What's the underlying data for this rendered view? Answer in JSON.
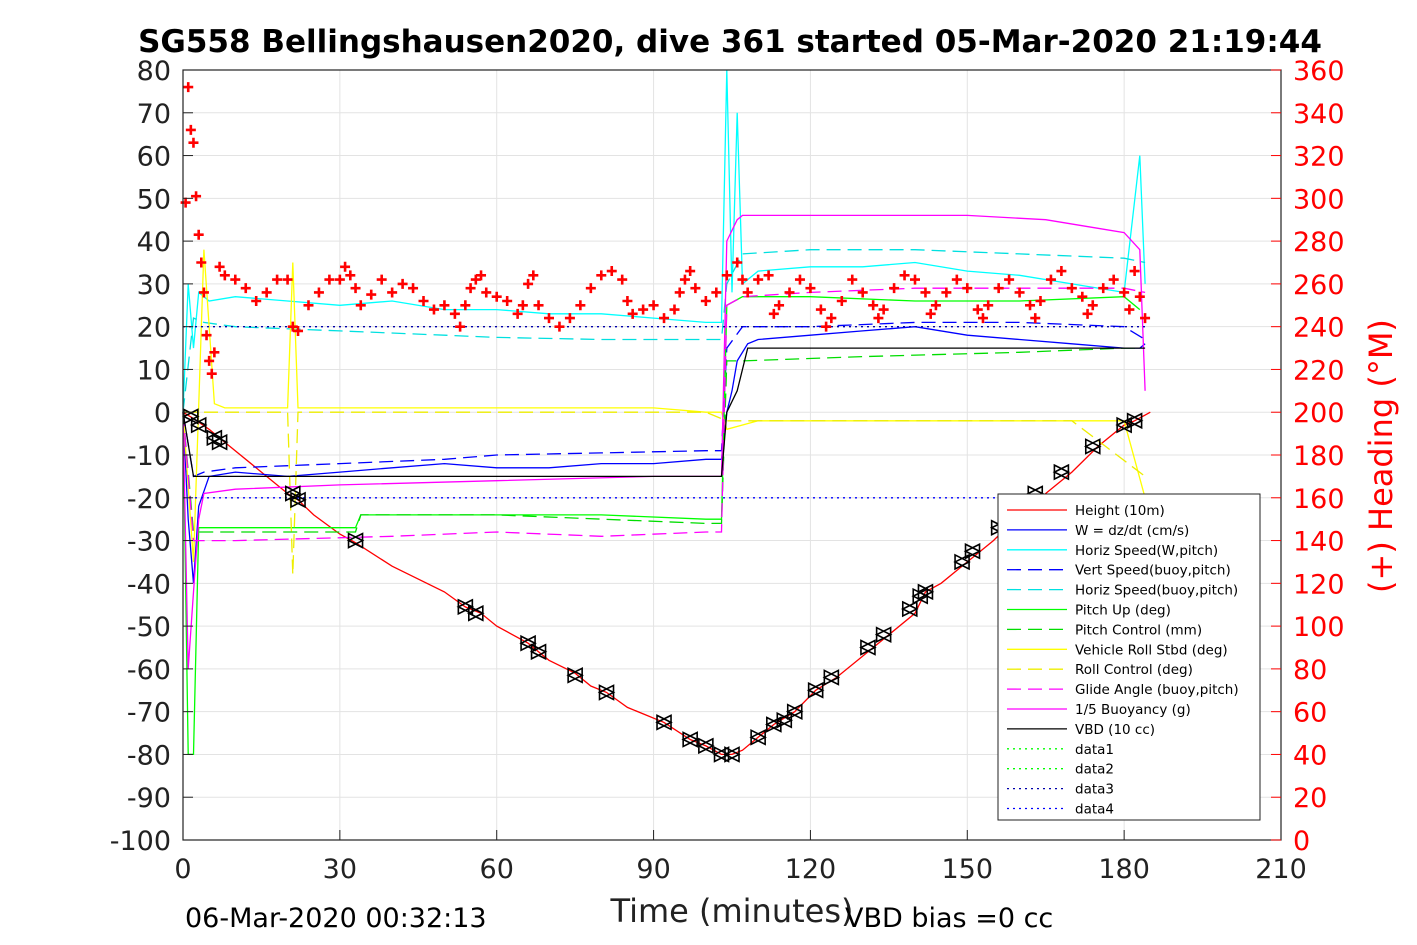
{
  "title": "SG558 Bellingshausen2020, dive 361 started 05-Mar-2020 21:19:44",
  "footer_left": "06-Mar-2020 00:32:13",
  "footer_right": "VBD bias =0 cc",
  "chart_data": {
    "type": "line",
    "xlabel": "Time (minutes)",
    "ylabel": "",
    "y2label": "(+) Heading (°M)",
    "xlim": [
      0,
      210
    ],
    "ylim": [
      -100,
      80
    ],
    "y2lim": [
      0,
      360
    ],
    "xticks": [
      0,
      30,
      60,
      90,
      120,
      150,
      180,
      210
    ],
    "yticks": [
      80,
      70,
      60,
      50,
      40,
      30,
      20,
      10,
      0,
      -10,
      -20,
      -30,
      -40,
      -50,
      -60,
      -70,
      -80,
      -90,
      -100
    ],
    "y2ticks": [
      360,
      340,
      320,
      300,
      280,
      260,
      240,
      220,
      200,
      180,
      160,
      140,
      120,
      100,
      80,
      60,
      40,
      20,
      0
    ],
    "grid": true,
    "legend_position": "lower-right",
    "colors": {
      "height": "#ff0000",
      "w": "#0000ff",
      "horiz_speed_w": "#00ffff",
      "vert_speed_buoy": "#0000ff",
      "horiz_speed_buoy": "#00e0e0",
      "pitch_up": "#00ff00",
      "pitch_control": "#00dd00",
      "roll": "#ffff00",
      "roll_control": "#eeee00",
      "glide_angle": "#ff00ff",
      "buoyancy": "#ff00ff",
      "vbd": "#000000",
      "heading": "#ff0000",
      "right_axis": "#ff0000"
    },
    "series": [
      {
        "name": "Height (10m)",
        "style": "solid",
        "color": "#ff0000",
        "x": [
          0,
          2,
          5,
          8,
          15,
          20,
          22,
          25,
          30,
          33,
          40,
          50,
          54,
          57,
          60,
          66,
          68,
          70,
          75,
          78,
          81,
          85,
          92,
          97,
          100,
          103,
          105,
          107,
          110,
          113,
          117,
          121,
          125,
          130,
          135,
          140,
          142,
          145,
          150,
          155,
          160,
          165,
          170,
          175,
          180,
          182,
          185
        ],
        "y": [
          0,
          -1.5,
          -4,
          -7,
          -14,
          -19,
          -20.5,
          -24,
          -28.5,
          -30.5,
          -36,
          -42,
          -45.5,
          -47,
          -50,
          -54,
          -56,
          -58,
          -61,
          -64,
          -65.5,
          -69,
          -72.5,
          -76.5,
          -78,
          -80,
          -80,
          -79,
          -76,
          -73,
          -70,
          -65,
          -62,
          -57,
          -52,
          -47,
          -42,
          -40,
          -35,
          -30,
          -24,
          -19,
          -14,
          -8,
          -3,
          -2,
          0
        ]
      },
      {
        "name": "W = dz/dt (cm/s)",
        "style": "solid",
        "color": "#0000ff",
        "x": [
          0,
          1,
          2,
          3,
          5,
          10,
          20,
          30,
          40,
          50,
          60,
          70,
          80,
          90,
          100,
          103,
          104,
          105,
          106,
          108,
          110,
          120,
          130,
          140,
          150,
          160,
          170,
          180,
          183,
          184
        ],
        "y": [
          0,
          -25,
          -40,
          -22,
          -15,
          -14,
          -15,
          -14,
          -13,
          -12,
          -13,
          -13,
          -12,
          -12,
          -11,
          -11,
          0,
          5,
          12,
          16,
          17,
          18,
          19,
          20,
          18,
          17,
          16,
          15,
          15,
          16
        ]
      },
      {
        "name": "Horiz Speed(W,pitch)",
        "style": "solid",
        "color": "#00ffff",
        "x": [
          0,
          1,
          2,
          3,
          5,
          10,
          20,
          30,
          40,
          50,
          60,
          70,
          80,
          90,
          100,
          103,
          104,
          105,
          106,
          107,
          110,
          120,
          130,
          140,
          150,
          160,
          170,
          180,
          183,
          184
        ],
        "y": [
          0,
          30,
          15,
          28,
          26,
          27,
          26,
          25,
          26,
          24,
          24,
          23,
          23,
          22,
          21,
          21,
          80,
          28,
          70,
          30,
          33,
          34,
          34,
          35,
          33,
          32,
          30,
          28,
          60,
          30
        ]
      },
      {
        "name": "Vert Speed(buoy,pitch)",
        "style": "dash",
        "color": "#0000ff",
        "x": [
          0,
          2,
          4,
          10,
          30,
          50,
          60,
          80,
          100,
          103,
          104,
          107,
          120,
          140,
          160,
          180,
          184
        ],
        "y": [
          0,
          -15,
          -14,
          -13,
          -12,
          -11,
          -10,
          -9.5,
          -9,
          -9,
          15,
          20,
          20,
          21,
          21,
          20,
          17
        ]
      },
      {
        "name": "Horiz Speed(buoy,pitch)",
        "style": "dash",
        "color": "#00e0e0",
        "x": [
          0,
          2,
          4,
          10,
          30,
          50,
          60,
          80,
          100,
          103,
          104,
          107,
          120,
          140,
          160,
          180,
          184
        ],
        "y": [
          0,
          22,
          21,
          20,
          19,
          18,
          17.5,
          17,
          17,
          17,
          30,
          37,
          38,
          38,
          37,
          36,
          35
        ]
      },
      {
        "name": "Pitch Up (deg)",
        "style": "solid",
        "color": "#00ff00",
        "x": [
          0,
          1,
          2,
          3,
          5,
          20,
          33,
          34,
          60,
          80,
          100,
          103,
          104,
          107,
          120,
          140,
          160,
          180,
          183
        ],
        "y": [
          0,
          -80,
          -80,
          -27,
          -27,
          -27,
          -27,
          -24,
          -24,
          -24,
          -25,
          -25,
          25,
          27,
          27,
          26,
          26,
          27,
          24
        ]
      },
      {
        "name": "Pitch Control (mm)",
        "style": "dash",
        "color": "#00dd00",
        "x": [
          0,
          2,
          4,
          20,
          33,
          34,
          60,
          100,
          103,
          104,
          107,
          130,
          160,
          180,
          183
        ],
        "y": [
          0,
          -28,
          -28,
          -28,
          -28,
          -24,
          -24,
          -26,
          -26,
          12,
          12,
          13,
          14,
          15,
          15
        ]
      },
      {
        "name": "Vehicle Roll Stbd (deg)",
        "style": "solid",
        "color": "#ffff00",
        "x": [
          0,
          2,
          4,
          6,
          8,
          20,
          21,
          22,
          30,
          40,
          50,
          55,
          60,
          70,
          80,
          90,
          100,
          103,
          104,
          110,
          120,
          130,
          140,
          150,
          160,
          170,
          180,
          184
        ],
        "y": [
          0,
          -35,
          38,
          2,
          1,
          1,
          35,
          1,
          1,
          1,
          1,
          1,
          1,
          1,
          1,
          1,
          0,
          0,
          -4,
          -2,
          -2,
          -2,
          -2,
          -2,
          -2,
          -2,
          -2,
          -20
        ]
      },
      {
        "name": "Roll Control (deg)",
        "style": "dash",
        "color": "#eeee00",
        "x": [
          0,
          5,
          20,
          21,
          22,
          40,
          60,
          80,
          100,
          104,
          110,
          140,
          170,
          184
        ],
        "y": [
          0,
          0,
          0,
          -38,
          0,
          0,
          0,
          0,
          0,
          -2,
          -2,
          -2,
          -2,
          -15
        ]
      },
      {
        "name": "Glide Angle (buoy,pitch)",
        "style": "dash",
        "color": "#ff00ff",
        "x": [
          0,
          2,
          4,
          10,
          40,
          60,
          80,
          100,
          103,
          104,
          107,
          120,
          140,
          160,
          180,
          184
        ],
        "y": [
          0,
          -30,
          -30,
          -30,
          -29,
          -28,
          -29,
          -28,
          -28,
          25,
          27,
          28,
          29,
          29,
          29,
          28
        ]
      },
      {
        "name": "1/5 Buoyancy (g)",
        "style": "solid",
        "color": "#ff00ff",
        "x": [
          0,
          1,
          2,
          3,
          4,
          10,
          30,
          60,
          90,
          103,
          104,
          106,
          107,
          108,
          130,
          150,
          165,
          175,
          180,
          183,
          184
        ],
        "y": [
          0,
          -60,
          -42,
          -25,
          -19,
          -18,
          -17,
          -16,
          -15,
          -15,
          40,
          45,
          46,
          46,
          46,
          46,
          45,
          43,
          42,
          38,
          5
        ]
      },
      {
        "name": "VBD (10 cc)",
        "style": "solid",
        "color": "#000000",
        "x": [
          0,
          2,
          4,
          20,
          60,
          100,
          103,
          104,
          106,
          108,
          130,
          160,
          180,
          184
        ],
        "y": [
          0,
          -15,
          -15,
          -15,
          -15,
          -15,
          -15,
          0,
          5,
          15,
          15,
          15,
          15,
          15
        ]
      },
      {
        "name": "data1",
        "style": "dot",
        "color": "#00ff00",
        "x": [],
        "y": []
      },
      {
        "name": "data2",
        "style": "dot",
        "color": "#00ff00",
        "x": [],
        "y": []
      },
      {
        "name": "data3",
        "style": "dot",
        "color": "#0000aa",
        "x": [
          0,
          184
        ],
        "y": [
          20,
          20
        ]
      },
      {
        "name": "data4",
        "style": "dot",
        "color": "#0000ff",
        "x": [
          0,
          184
        ],
        "y": [
          -20,
          -20
        ]
      }
    ],
    "markers": {
      "x": [
        1.5,
        3,
        6,
        7,
        21,
        22,
        33,
        54,
        56,
        66,
        68,
        75,
        81,
        92,
        97,
        100,
        103,
        105,
        110,
        113,
        115,
        117,
        121,
        124,
        131,
        134,
        139,
        141,
        142,
        149,
        151,
        156,
        163,
        168,
        174,
        180,
        182
      ],
      "y": [
        -1,
        -3,
        -6,
        -7,
        -19,
        -20.5,
        -30,
        -45.5,
        -47,
        -54,
        -56,
        -61.5,
        -65.5,
        -72.5,
        -76.5,
        -78,
        -80,
        -80,
        -76,
        -73,
        -72,
        -70,
        -65,
        -62,
        -55,
        -52,
        -46,
        -43,
        -42,
        -35,
        -32.5,
        -27,
        -19,
        -14,
        -8,
        -3,
        -2
      ]
    },
    "heading": {
      "name": "Heading",
      "x": [
        0.5,
        1,
        1.5,
        2,
        2.5,
        3,
        3.5,
        4,
        4.5,
        5,
        5.5,
        6,
        7,
        8,
        10,
        12,
        14,
        16,
        18,
        20,
        21,
        22,
        24,
        26,
        28,
        30,
        31,
        32,
        33,
        34,
        36,
        38,
        40,
        42,
        44,
        46,
        48,
        50,
        52,
        53,
        54,
        55,
        56,
        57,
        58,
        60,
        62,
        64,
        65,
        66,
        67,
        68,
        70,
        72,
        74,
        76,
        78,
        80,
        82,
        84,
        85,
        86,
        88,
        90,
        92,
        94,
        95,
        96,
        97,
        98,
        100,
        102,
        104,
        106,
        107,
        108,
        110,
        112,
        113,
        114,
        116,
        118,
        120,
        122,
        123,
        124,
        126,
        128,
        130,
        132,
        133,
        134,
        136,
        138,
        140,
        142,
        143,
        144,
        146,
        148,
        150,
        152,
        153,
        154,
        156,
        158,
        160,
        162,
        163,
        164,
        166,
        168,
        170,
        172,
        173,
        174,
        176,
        178,
        180,
        181,
        182,
        183,
        184
      ],
      "y": [
        298,
        352,
        332,
        326,
        301,
        283,
        270,
        256,
        236,
        224,
        218,
        228,
        268,
        264,
        262,
        258,
        252,
        256,
        262,
        262,
        240,
        238,
        250,
        256,
        262,
        262,
        268,
        264,
        258,
        250,
        255,
        262,
        256,
        260,
        258,
        252,
        248,
        250,
        246,
        240,
        250,
        258,
        262,
        264,
        256,
        254,
        252,
        246,
        250,
        260,
        264,
        250,
        244,
        240,
        244,
        250,
        258,
        264,
        266,
        262,
        252,
        246,
        248,
        250,
        244,
        248,
        256,
        262,
        266,
        258,
        252,
        256,
        264,
        270,
        262,
        256,
        262,
        264,
        246,
        250,
        256,
        262,
        258,
        248,
        240,
        244,
        252,
        262,
        256,
        250,
        244,
        248,
        258,
        264,
        262,
        256,
        246,
        250,
        256,
        262,
        258,
        248,
        244,
        250,
        258,
        262,
        256,
        250,
        244,
        252,
        262,
        266,
        258,
        254,
        246,
        250,
        258,
        262,
        256,
        248,
        266,
        254,
        244
      ]
    }
  }
}
